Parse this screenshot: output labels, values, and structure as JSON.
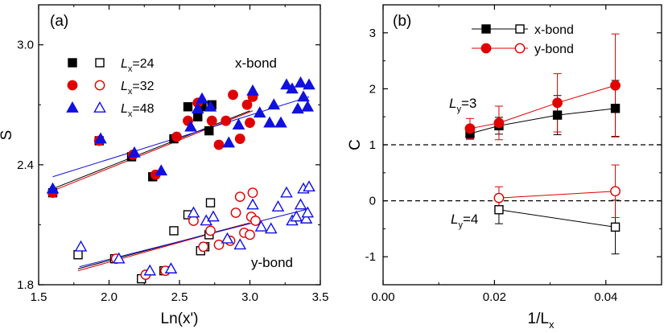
{
  "chart_data": [
    {
      "panel_label": "(a)",
      "type": "scatter",
      "xlabel": "Ln(x')",
      "ylabel": "S",
      "xlim": [
        1.5,
        3.5
      ],
      "ylim": [
        1.8,
        3.2
      ],
      "xticks": [
        "1.5",
        "2.0",
        "2.5",
        "3.0",
        "3.5"
      ],
      "yticks": [
        "1.8",
        "2.4",
        "3.0"
      ],
      "ytick_values": [
        1.8,
        2.4,
        3.0
      ],
      "annotations": [
        "x-bond",
        "y-bond"
      ],
      "legend_placement": "top-left",
      "legend": [
        {
          "prefix": "L",
          "sub": "x",
          "suffix": "=24",
          "color": "#000000",
          "marker": "square"
        },
        {
          "prefix": "L",
          "sub": "x",
          "suffix": "=32",
          "color": "#e00000",
          "marker": "circle"
        },
        {
          "prefix": "L",
          "sub": "x",
          "suffix": "=48",
          "color": "#1010e0",
          "marker": "triangle"
        }
      ],
      "series": [
        {
          "legend_index": 0,
          "marker": "square",
          "fill": "filled",
          "color": "#000000",
          "x": [
            1.6,
            1.93,
            2.16,
            2.31,
            2.46,
            2.56,
            2.63,
            2.66,
            2.71,
            2.73
          ],
          "y": [
            2.26,
            2.52,
            2.44,
            2.34,
            2.53,
            2.69,
            2.64,
            2.69,
            2.57,
            2.7
          ],
          "fit": [
            [
              1.6,
              2.28
            ],
            [
              3.0,
              2.67
            ]
          ]
        },
        {
          "legend_index": 1,
          "marker": "circle",
          "fill": "filled",
          "color": "#e00000",
          "x": [
            1.6,
            1.93,
            2.17,
            2.33,
            2.48,
            2.56,
            2.63,
            2.73,
            2.78,
            2.83,
            2.88,
            2.93,
            2.98,
            3.0,
            3.02
          ],
          "y": [
            2.26,
            2.52,
            2.45,
            2.35,
            2.54,
            2.62,
            2.71,
            2.62,
            2.5,
            2.62,
            2.75,
            2.53,
            2.7,
            2.61,
            2.74
          ],
          "fit": [
            [
              1.6,
              2.27
            ],
            [
              3.02,
              2.67
            ]
          ]
        },
        {
          "legend_index": 2,
          "marker": "triangle",
          "fill": "filled",
          "color": "#1010e0",
          "x": [
            1.6,
            1.94,
            2.18,
            2.37,
            2.58,
            2.63,
            2.66,
            2.72,
            2.85,
            2.92,
            3.02,
            3.07,
            3.14,
            3.17,
            3.22,
            3.26,
            3.3,
            3.34,
            3.36,
            3.38,
            3.41,
            3.42
          ],
          "y": [
            2.28,
            2.53,
            2.46,
            2.37,
            2.59,
            2.68,
            2.73,
            2.69,
            2.51,
            2.6,
            2.77,
            2.66,
            2.61,
            2.7,
            2.61,
            2.8,
            2.78,
            2.68,
            2.81,
            2.74,
            2.69,
            2.8
          ],
          "fit": [
            [
              1.6,
              2.34
            ],
            [
              3.42,
              2.74
            ]
          ]
        },
        {
          "legend_index": 0,
          "marker": "square",
          "fill": "open",
          "color": "#000000",
          "x": [
            1.78,
            2.04,
            2.23,
            2.39,
            2.46,
            2.56,
            2.65,
            2.68,
            2.71,
            2.72
          ],
          "y": [
            1.95,
            1.93,
            1.83,
            1.87,
            2.07,
            2.15,
            1.97,
            1.99,
            2.05,
            2.21
          ],
          "fit": [
            [
              1.78,
              1.88
            ],
            [
              3.0,
              2.11
            ]
          ]
        },
        {
          "legend_index": 1,
          "marker": "circle",
          "fill": "open",
          "color": "#e00000",
          "x": [
            2.05,
            2.26,
            2.4,
            2.6,
            2.67,
            2.72,
            2.78,
            2.86,
            2.9,
            2.93,
            2.96,
            3.0,
            3.01,
            3.02,
            3.04
          ],
          "y": [
            1.93,
            1.85,
            1.87,
            2.12,
            1.99,
            2.07,
            2.0,
            2.02,
            2.16,
            2.24,
            2.06,
            2.05,
            2.14,
            2.26,
            2.12
          ],
          "fit": [
            [
              1.78,
              1.87
            ],
            [
              3.0,
              2.11
            ]
          ]
        },
        {
          "legend_index": 2,
          "marker": "triangle",
          "fill": "open",
          "color": "#1010e0",
          "x": [
            1.8,
            2.07,
            2.29,
            2.44,
            2.6,
            2.69,
            2.74,
            2.84,
            2.93,
            3.02,
            3.08,
            3.15,
            3.2,
            3.26,
            3.3,
            3.33,
            3.36,
            3.38,
            3.4,
            3.41,
            3.42
          ],
          "y": [
            1.99,
            1.93,
            1.87,
            1.88,
            2.16,
            2.12,
            2.14,
            2.03,
            2.0,
            2.2,
            2.09,
            2.08,
            2.19,
            2.26,
            2.12,
            2.14,
            2.2,
            2.28,
            2.13,
            2.16,
            2.29
          ],
          "fit": [
            [
              1.79,
              1.89
            ],
            [
              3.42,
              2.18
            ]
          ]
        }
      ]
    },
    {
      "panel_label": "(b)",
      "type": "line",
      "xlabel_main": "1/L",
      "xlabel_sub": "x",
      "ylabel": "C",
      "xlim": [
        0.0,
        0.05
      ],
      "ylim": [
        -1.5,
        3.5
      ],
      "xticks": [
        "0.00",
        "0.02",
        "0.04"
      ],
      "xtick_values": [
        0.0,
        0.02,
        0.04
      ],
      "yticks": [
        "-1",
        "0",
        "1",
        "2",
        "3"
      ],
      "ytick_values": [
        -1,
        0,
        1,
        2,
        3
      ],
      "reference_lines_y": [
        1,
        0
      ],
      "legend_placement": "top",
      "legend": [
        {
          "label": "x-bond",
          "color": "#000000",
          "marker": "square"
        },
        {
          "label": "y-bond",
          "color": "#e00000",
          "marker": "circle"
        }
      ],
      "annotations": [
        {
          "prefix": "L",
          "sub": "y",
          "suffix": "=3"
        },
        {
          "prefix": "L",
          "sub": "y",
          "suffix": "=4"
        }
      ],
      "series": [
        {
          "legend_index": 0,
          "marker": "square",
          "fill": "filled",
          "color": "#000000",
          "x": [
            0.0156,
            0.0208,
            0.0313,
            0.0417
          ],
          "y": [
            1.2,
            1.34,
            1.53,
            1.65
          ],
          "err": [
            0.1,
            0.15,
            0.35,
            0.5
          ]
        },
        {
          "legend_index": 1,
          "marker": "circle",
          "fill": "filled",
          "color": "#e00000",
          "x": [
            0.0156,
            0.0208,
            0.0313,
            0.0417
          ],
          "y": [
            1.29,
            1.39,
            1.75,
            2.06
          ],
          "err": [
            0.18,
            0.3,
            0.52,
            0.92
          ]
        },
        {
          "legend_index": 0,
          "marker": "square",
          "fill": "open",
          "color": "#000000",
          "x": [
            0.0208,
            0.0417
          ],
          "y": [
            -0.16,
            -0.47
          ],
          "err": [
            0.25,
            0.48
          ]
        },
        {
          "legend_index": 1,
          "marker": "circle",
          "fill": "open",
          "color": "#e00000",
          "x": [
            0.0208,
            0.0417
          ],
          "y": [
            0.05,
            0.17
          ],
          "err": [
            0.2,
            0.47
          ]
        }
      ]
    }
  ]
}
